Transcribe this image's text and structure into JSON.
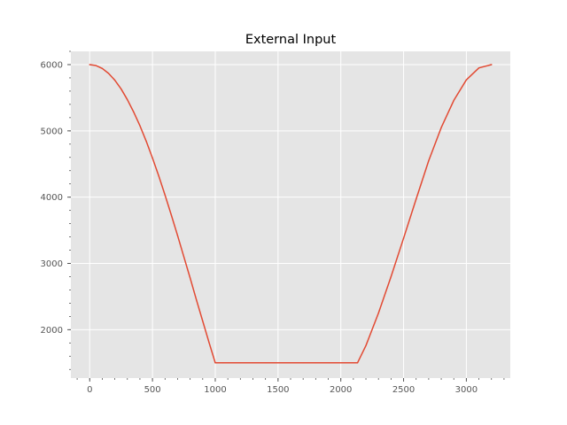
{
  "chart_data": {
    "type": "line",
    "title": "External Input",
    "xlabel": "",
    "ylabel": "",
    "xlim": [
      -150,
      3350
    ],
    "ylim": [
      1270,
      6200
    ],
    "xticks": [
      0,
      500,
      1000,
      1500,
      2000,
      2500,
      3000
    ],
    "yticks": [
      2000,
      3000,
      4000,
      5000,
      6000
    ],
    "xtick_labels": [
      "0",
      "500",
      "1000",
      "1500",
      "2000",
      "2500",
      "3000"
    ],
    "ytick_labels": [
      "2000",
      "3000",
      "4000",
      "5000",
      "6000"
    ],
    "grid": true,
    "minor_ticks": true,
    "series": [
      {
        "color": "#e24a33",
        "x": [
          0,
          50,
          100,
          150,
          200,
          250,
          300,
          350,
          400,
          450,
          500,
          550,
          600,
          650,
          700,
          750,
          800,
          850,
          900,
          950,
          1000,
          1067,
          1100,
          1200,
          1300,
          1400,
          1500,
          1600,
          1700,
          1800,
          1900,
          2000,
          2133,
          2200,
          2300,
          2400,
          2500,
          2600,
          2700,
          2800,
          2900,
          3000,
          3100,
          3200
        ],
        "y": [
          6000,
          5986,
          5942,
          5868,
          5765,
          5633,
          5471,
          5285,
          5078,
          4845,
          4590,
          4320,
          4030,
          3730,
          3420,
          3100,
          2780,
          2450,
          2130,
          1810,
          1500,
          1500,
          1500,
          1500,
          1500,
          1500,
          1500,
          1500,
          1500,
          1500,
          1500,
          1500,
          1500,
          1760,
          2250,
          2800,
          3380,
          3970,
          4550,
          5050,
          5460,
          5770,
          5950,
          6000
        ]
      }
    ],
    "colors": {
      "background": "#e5e5e5",
      "grid": "#ffffff",
      "tick": "#555555"
    }
  }
}
